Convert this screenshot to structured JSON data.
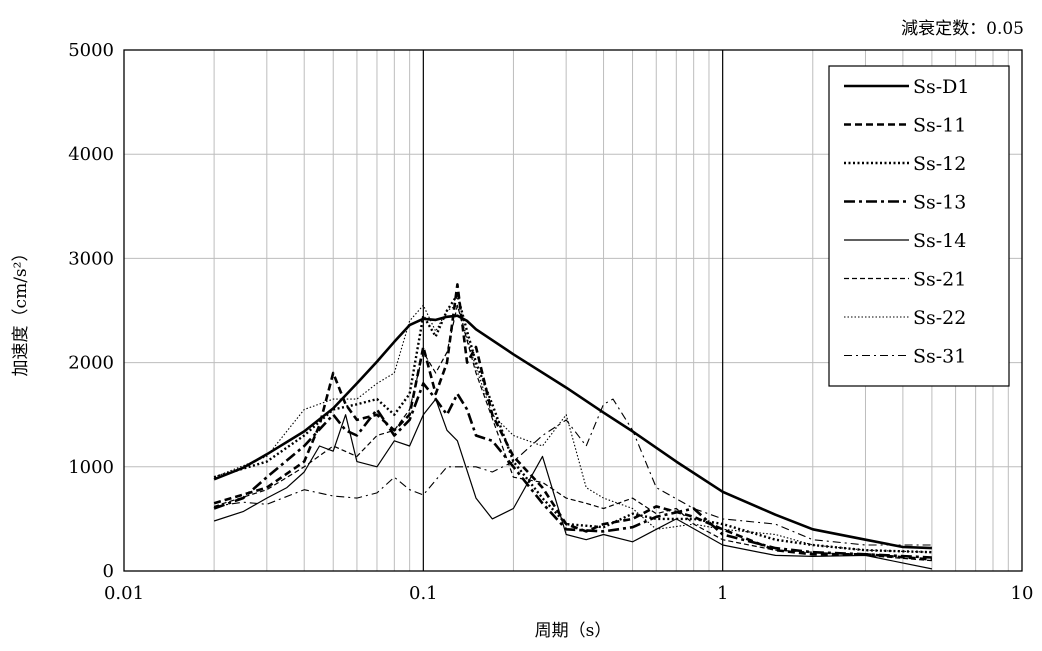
{
  "header": {
    "note": "減衰定数：0.05"
  },
  "chart_data": {
    "type": "line",
    "xscale": "log",
    "xlim": [
      0.01,
      10
    ],
    "ylim": [
      0,
      5000
    ],
    "xlabel": "周期（s）",
    "ylabel": "加速度（cm/s²）",
    "xticks": [
      {
        "value": 0.01,
        "label": "0.01"
      },
      {
        "value": 0.1,
        "label": "0.1"
      },
      {
        "value": 1,
        "label": "1"
      },
      {
        "value": 10,
        "label": "10"
      }
    ],
    "yticks": [
      {
        "value": 0,
        "label": "0"
      },
      {
        "value": 1000,
        "label": "1000"
      },
      {
        "value": 2000,
        "label": "2000"
      },
      {
        "value": 3000,
        "label": "3000"
      },
      {
        "value": 4000,
        "label": "4000"
      },
      {
        "value": 5000,
        "label": "5000"
      }
    ],
    "grid": true,
    "legend": "top-right",
    "series": [
      {
        "name": "Ss-D1",
        "style": "solid-thick",
        "x": [
          0.02,
          0.025,
          0.03,
          0.04,
          0.05,
          0.06,
          0.07,
          0.08,
          0.09,
          0.1,
          0.11,
          0.12,
          0.13,
          0.14,
          0.15,
          0.2,
          0.3,
          0.4,
          0.5,
          0.7,
          1.0,
          1.5,
          2.0,
          3.0,
          4.0,
          5.0
        ],
        "y": [
          880,
          990,
          1120,
          1340,
          1560,
          1800,
          2010,
          2200,
          2360,
          2420,
          2410,
          2440,
          2450,
          2400,
          2320,
          2080,
          1760,
          1520,
          1340,
          1050,
          760,
          540,
          400,
          300,
          230,
          220
        ]
      },
      {
        "name": "Ss-11",
        "style": "dashed-thick",
        "x": [
          0.02,
          0.03,
          0.04,
          0.045,
          0.05,
          0.055,
          0.06,
          0.07,
          0.08,
          0.09,
          0.1,
          0.11,
          0.12,
          0.13,
          0.14,
          0.15,
          0.17,
          0.2,
          0.25,
          0.3,
          0.35,
          0.4,
          0.5,
          0.6,
          0.8,
          1.0,
          1.5,
          2.0,
          3.0,
          5.0
        ],
        "y": [
          650,
          800,
          1050,
          1400,
          1900,
          1600,
          1450,
          1500,
          1350,
          1500,
          2150,
          1700,
          2000,
          2750,
          2000,
          2150,
          1500,
          1100,
          800,
          450,
          380,
          450,
          500,
          620,
          520,
          400,
          200,
          160,
          160,
          110
        ]
      },
      {
        "name": "Ss-12",
        "style": "dotted-thick",
        "x": [
          0.02,
          0.03,
          0.04,
          0.05,
          0.06,
          0.07,
          0.08,
          0.09,
          0.1,
          0.11,
          0.12,
          0.13,
          0.14,
          0.15,
          0.17,
          0.2,
          0.25,
          0.3,
          0.4,
          0.5,
          0.6,
          0.8,
          1.0,
          1.5,
          2.0,
          3.0,
          5.0
        ],
        "y": [
          900,
          1050,
          1300,
          1550,
          1600,
          1650,
          1500,
          1700,
          2450,
          2250,
          2500,
          2650,
          2300,
          2000,
          1600,
          1050,
          700,
          450,
          420,
          550,
          500,
          500,
          450,
          300,
          250,
          200,
          180
        ]
      },
      {
        "name": "Ss-13",
        "style": "dashdot-thick",
        "x": [
          0.02,
          0.025,
          0.03,
          0.04,
          0.05,
          0.055,
          0.06,
          0.07,
          0.08,
          0.09,
          0.1,
          0.11,
          0.12,
          0.13,
          0.14,
          0.15,
          0.17,
          0.2,
          0.25,
          0.3,
          0.4,
          0.5,
          0.6,
          0.8,
          1.0,
          1.5,
          2.0,
          3.0,
          5.0
        ],
        "y": [
          600,
          700,
          900,
          1200,
          1500,
          1350,
          1300,
          1550,
          1300,
          1450,
          1800,
          1650,
          1500,
          1700,
          1550,
          1300,
          1250,
          1000,
          650,
          400,
          380,
          420,
          520,
          600,
          350,
          220,
          180,
          160,
          130
        ]
      },
      {
        "name": "Ss-14",
        "style": "solid-thin",
        "x": [
          0.02,
          0.025,
          0.03,
          0.035,
          0.04,
          0.045,
          0.05,
          0.055,
          0.06,
          0.07,
          0.08,
          0.09,
          0.1,
          0.11,
          0.12,
          0.13,
          0.15,
          0.17,
          0.2,
          0.25,
          0.3,
          0.35,
          0.4,
          0.5,
          0.6,
          0.7,
          1.0,
          1.5,
          2.0,
          3.0,
          5.0
        ],
        "y": [
          480,
          570,
          700,
          800,
          950,
          1200,
          1150,
          1500,
          1050,
          1000,
          1250,
          1200,
          1500,
          1650,
          1350,
          1250,
          700,
          500,
          600,
          1100,
          350,
          300,
          350,
          280,
          400,
          500,
          250,
          150,
          140,
          150,
          20
        ]
      },
      {
        "name": "Ss-21",
        "style": "dashed-thin",
        "x": [
          0.02,
          0.03,
          0.04,
          0.05,
          0.06,
          0.07,
          0.08,
          0.09,
          0.1,
          0.11,
          0.12,
          0.13,
          0.15,
          0.2,
          0.25,
          0.3,
          0.35,
          0.4,
          0.5,
          0.6,
          0.7,
          0.8,
          1.0,
          1.5,
          2.0,
          3.0,
          5.0
        ],
        "y": [
          620,
          780,
          1000,
          1200,
          1100,
          1300,
          1350,
          1550,
          2100,
          1900,
          2100,
          2550,
          1900,
          900,
          850,
          700,
          650,
          600,
          700,
          550,
          600,
          450,
          300,
          200,
          180,
          150,
          100
        ]
      },
      {
        "name": "Ss-22",
        "style": "dotted-thin",
        "x": [
          0.02,
          0.03,
          0.04,
          0.05,
          0.06,
          0.07,
          0.08,
          0.09,
          0.1,
          0.11,
          0.12,
          0.13,
          0.15,
          0.17,
          0.2,
          0.25,
          0.3,
          0.35,
          0.4,
          0.5,
          0.6,
          0.8,
          1.0,
          1.5,
          2.0,
          3.0,
          5.0
        ],
        "y": [
          900,
          1100,
          1550,
          1650,
          1650,
          1800,
          1900,
          2400,
          2550,
          2300,
          2500,
          2550,
          1950,
          1500,
          1300,
          1200,
          1500,
          800,
          700,
          600,
          400,
          450,
          400,
          350,
          250,
          200,
          180
        ]
      },
      {
        "name": "Ss-31",
        "style": "dashdot-thin",
        "x": [
          0.02,
          0.025,
          0.03,
          0.04,
          0.05,
          0.06,
          0.07,
          0.08,
          0.09,
          0.1,
          0.12,
          0.15,
          0.17,
          0.2,
          0.25,
          0.3,
          0.35,
          0.4,
          0.43,
          0.5,
          0.6,
          0.8,
          1.0,
          1.5,
          2.0,
          3.0,
          5.0
        ],
        "y": [
          620,
          660,
          640,
          780,
          720,
          700,
          750,
          900,
          780,
          730,
          1000,
          1000,
          950,
          1050,
          1300,
          1450,
          1200,
          1600,
          1650,
          1350,
          800,
          600,
          500,
          450,
          300,
          250,
          250
        ]
      }
    ]
  }
}
